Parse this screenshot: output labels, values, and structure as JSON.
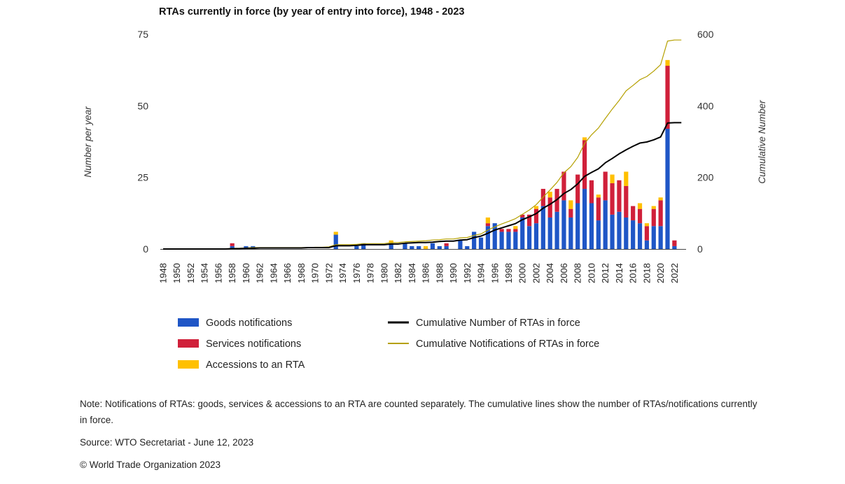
{
  "chart_data": {
    "type": "bar",
    "title": "RTAs currently in force (by year of entry into force), 1948 - 2023",
    "ylabel_left": "Number per year",
    "ylabel_right": "Cumulative Number",
    "y_left_ticks": [
      "0",
      "25",
      "50",
      "75"
    ],
    "y_right_ticks": [
      "0",
      "200",
      "400",
      "600"
    ],
    "ylim_left": [
      0,
      75
    ],
    "ylim_right": [
      0,
      600
    ],
    "x_tick_labels": [
      "1948",
      "1950",
      "1952",
      "1954",
      "1956",
      "1958",
      "1960",
      "1962",
      "1964",
      "1966",
      "1968",
      "1970",
      "1972",
      "1974",
      "1976",
      "1978",
      "1980",
      "1982",
      "1984",
      "1986",
      "1988",
      "1990",
      "1992",
      "1994",
      "1996",
      "1998",
      "2000",
      "2002",
      "2004",
      "2006",
      "2008",
      "2010",
      "2012",
      "2014",
      "2016",
      "2018",
      "2020",
      "2022"
    ],
    "years": [
      1948,
      1949,
      1950,
      1951,
      1952,
      1953,
      1954,
      1955,
      1956,
      1957,
      1958,
      1959,
      1960,
      1961,
      1962,
      1963,
      1964,
      1965,
      1966,
      1967,
      1968,
      1969,
      1970,
      1971,
      1972,
      1973,
      1974,
      1975,
      1976,
      1977,
      1978,
      1979,
      1980,
      1981,
      1982,
      1983,
      1984,
      1985,
      1986,
      1987,
      1988,
      1989,
      1990,
      1991,
      1992,
      1993,
      1994,
      1995,
      1996,
      1997,
      1998,
      1999,
      2000,
      2001,
      2002,
      2003,
      2004,
      2005,
      2006,
      2007,
      2008,
      2009,
      2010,
      2011,
      2012,
      2013,
      2014,
      2015,
      2016,
      2017,
      2018,
      2019,
      2020,
      2021,
      2022,
      2023
    ],
    "series": [
      {
        "name": "Goods notifications",
        "kind": "bar",
        "color": "#1f56c6",
        "values": [
          0,
          0,
          0,
          0,
          0,
          0,
          0,
          0,
          0,
          0,
          1,
          0,
          1,
          1,
          0,
          0,
          0,
          0,
          0,
          0,
          0,
          0,
          0,
          0,
          0,
          5,
          0,
          0,
          1,
          2,
          0,
          0,
          0,
          2,
          0,
          2,
          1,
          1,
          0,
          2,
          1,
          1,
          0,
          3,
          1,
          6,
          4,
          8,
          9,
          6,
          6,
          6,
          11,
          8,
          9,
          15,
          11,
          13,
          17,
          11,
          16,
          21,
          16,
          10,
          17,
          12,
          13,
          11,
          10,
          9,
          3,
          8,
          8,
          42,
          1,
          0
        ]
      },
      {
        "name": "Services notifications",
        "kind": "bar",
        "color": "#d0203a",
        "values": [
          0,
          0,
          0,
          0,
          0,
          0,
          0,
          0,
          0,
          0,
          1,
          0,
          0,
          0,
          0,
          0,
          0,
          0,
          0,
          0,
          0,
          0,
          0,
          0,
          0,
          0,
          0,
          0,
          0,
          0,
          0,
          0,
          0,
          0,
          0,
          0,
          0,
          0,
          0,
          0,
          0,
          1,
          0,
          0,
          0,
          0,
          0,
          1,
          0,
          1,
          1,
          1,
          1,
          4,
          5,
          6,
          7,
          8,
          10,
          3,
          10,
          17,
          8,
          8,
          10,
          11,
          11,
          11,
          5,
          5,
          5,
          6,
          9,
          22,
          2,
          0
        ]
      },
      {
        "name": "Accessions to an RTA",
        "kind": "bar",
        "color": "#ffc000",
        "values": [
          0,
          0,
          0,
          0,
          0,
          0,
          0,
          0,
          0,
          0,
          0,
          0,
          0,
          0,
          0,
          0,
          0,
          0,
          0,
          0,
          0,
          0,
          0,
          0,
          0,
          1,
          0,
          0,
          0,
          0,
          0,
          0,
          0,
          1,
          0,
          0,
          0,
          0,
          1,
          0,
          0,
          0,
          0,
          0,
          0,
          0,
          0,
          2,
          0,
          0,
          0,
          1,
          0,
          0,
          1,
          0,
          2,
          0,
          0,
          3,
          0,
          1,
          0,
          1,
          0,
          3,
          0,
          5,
          0,
          2,
          1,
          1,
          1,
          2,
          0,
          0
        ]
      },
      {
        "name": "Cumulative Number of RTAs in force",
        "kind": "line",
        "color": "#000000",
        "values": [
          0,
          0,
          0,
          0,
          0,
          0,
          0,
          0,
          0,
          0,
          1,
          1,
          2,
          2,
          3,
          3,
          3,
          3,
          3,
          3,
          3,
          4,
          4,
          4,
          4,
          9,
          9,
          9,
          10,
          12,
          12,
          12,
          12,
          14,
          14,
          16,
          17,
          18,
          18,
          19,
          21,
          22,
          22,
          25,
          26,
          32,
          36,
          44,
          53,
          59,
          65,
          71,
          82,
          90,
          99,
          114,
          125,
          138,
          155,
          166,
          182,
          203,
          214,
          224,
          241,
          253,
          266,
          277,
          287,
          296,
          299,
          305,
          313,
          352,
          353,
          353
        ]
      },
      {
        "name": "Cumulative Notifications of RTAs in force",
        "kind": "line",
        "color": "#b5a000",
        "values": [
          0,
          0,
          0,
          0,
          0,
          0,
          0,
          0,
          0,
          0,
          2,
          2,
          3,
          4,
          4,
          4,
          4,
          4,
          4,
          4,
          4,
          4,
          5,
          5,
          6,
          12,
          12,
          12,
          13,
          15,
          15,
          15,
          15,
          18,
          18,
          20,
          21,
          22,
          23,
          25,
          26,
          28,
          28,
          31,
          32,
          38,
          42,
          53,
          62,
          70,
          77,
          85,
          97,
          109,
          124,
          145,
          165,
          186,
          213,
          230,
          256,
          295,
          319,
          338,
          365,
          391,
          415,
          442,
          457,
          473,
          482,
          497,
          515,
          581,
          584,
          584
        ]
      }
    ],
    "legend_position": "bottom"
  },
  "note": "Note: Notifications of RTAs: goods, services & accessions to an RTA are counted separately. The cumulative lines show the number of RTAs/notifications currently in force.",
  "source": "Source: WTO Secretariat   -  June 12, 2023",
  "copyright": "© World Trade Organization 2023"
}
